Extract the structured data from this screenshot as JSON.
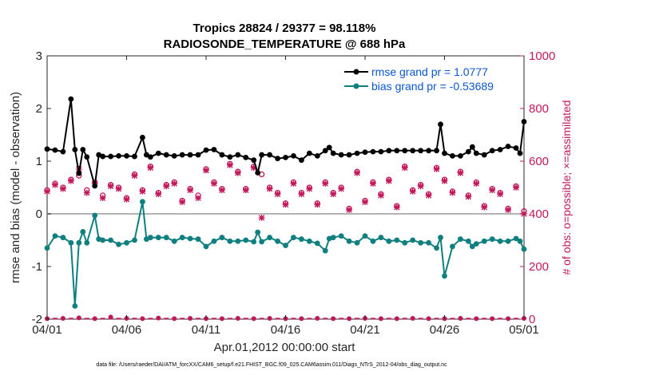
{
  "chart_data": {
    "type": "line",
    "title": "Tropics 28824 / 29377 = 98.118%",
    "subtitle": "RADIOSONDE_TEMPERATURE @ 688 hPa",
    "xlabel": "Apr.01,2012 00:00:00 start",
    "ylabel": "rmse and bias (model - observation)",
    "ylabel_right": "# of obs: o=possible; ×=assimilated",
    "footer": "data file: /Users/raeder/DAI/ATM_forcXX/CAM6_setup/f.e21.FHIST_BGC.f09_025.CAM6assim.011/Diags_NTrS_2012-04/obs_diag_output.nc",
    "xlim": [
      0,
      30
    ],
    "ylim": [
      -2,
      3
    ],
    "ylim_right": [
      0,
      1000
    ],
    "x_ticks": [
      0,
      5,
      10,
      15,
      20,
      25,
      30
    ],
    "x_tick_labels": [
      "04/01",
      "04/06",
      "04/11",
      "04/16",
      "04/21",
      "04/26",
      "05/01"
    ],
    "y_ticks": [
      -2,
      -1,
      0,
      1,
      2,
      3
    ],
    "y_tick_labels": [
      "-2",
      "-1",
      "0",
      "1",
      "2",
      "3"
    ],
    "y_right_ticks": [
      0,
      200,
      400,
      600,
      800,
      1000
    ],
    "y_right_tick_labels": [
      "0",
      "200",
      "400",
      "600",
      "800",
      "1000"
    ],
    "legend": [
      "rmse grand pr = 1.0777",
      "bias grand pr = -0.53689"
    ],
    "legend_position": "top-right",
    "reference_line": 0,
    "colors": {
      "rmse": "#000000",
      "bias": "#0f7f7f",
      "obs": "#c2185b",
      "zero_line": "#b3b3b3"
    },
    "series": [
      {
        "name": "rmse",
        "x": [
          0,
          0.5,
          1,
          1.5,
          1.75,
          2,
          2.25,
          2.5,
          3,
          3.25,
          3.5,
          4,
          4.5,
          5,
          5.5,
          6,
          6.25,
          6.5,
          7,
          7.5,
          8,
          8.5,
          9,
          9.5,
          10,
          10.5,
          11,
          11.5,
          12,
          12.5,
          13,
          13.25,
          13.5,
          14,
          14.5,
          15,
          15.5,
          16,
          16.5,
          17,
          17.5,
          17.75,
          18,
          18.5,
          19,
          19.5,
          20,
          20.5,
          21,
          21.5,
          22,
          22.5,
          23,
          23.5,
          24,
          24.5,
          24.75,
          25,
          25.5,
          26,
          26.5,
          26.75,
          27,
          27.5,
          28,
          28.5,
          29,
          29.5,
          29.75,
          30
        ],
        "values": [
          1.23,
          1.21,
          1.18,
          2.18,
          1.22,
          0.77,
          1.22,
          1.08,
          0.53,
          1.12,
          1.09,
          1.09,
          1.1,
          1.1,
          1.09,
          1.45,
          1.12,
          1.08,
          1.15,
          1.12,
          1.1,
          1.12,
          1.12,
          1.12,
          1.21,
          1.22,
          1.12,
          1.08,
          1.12,
          1.07,
          1.02,
          0.78,
          1.12,
          1.12,
          1.05,
          1.07,
          1.1,
          1.02,
          1.15,
          1.1,
          1.2,
          1.26,
          1.15,
          1.12,
          1.12,
          1.15,
          1.17,
          1.18,
          1.18,
          1.2,
          1.2,
          1.2,
          1.2,
          1.2,
          1.2,
          1.2,
          1.7,
          1.15,
          1.1,
          1.1,
          1.18,
          1.27,
          1.15,
          1.12,
          1.2,
          1.22,
          1.28,
          1.25,
          1.15,
          1.75
        ]
      },
      {
        "name": "bias",
        "x": [
          0,
          0.5,
          1,
          1.5,
          1.75,
          2,
          2.25,
          2.5,
          3,
          3.25,
          3.5,
          4,
          4.5,
          5,
          5.5,
          6,
          6.25,
          6.5,
          7,
          7.5,
          8,
          8.5,
          9,
          9.5,
          10,
          10.5,
          11,
          11.5,
          12,
          12.5,
          13,
          13.25,
          13.5,
          14,
          14.5,
          15,
          15.5,
          16,
          16.5,
          17,
          17.5,
          17.75,
          18,
          18.5,
          19,
          19.5,
          20,
          20.5,
          21,
          21.5,
          22,
          22.5,
          23,
          23.5,
          24,
          24.5,
          24.75,
          25,
          25.5,
          26,
          26.5,
          26.75,
          27,
          27.5,
          28,
          28.5,
          29,
          29.5,
          29.75,
          30
        ],
        "values": [
          -0.65,
          -0.42,
          -0.45,
          -0.55,
          -1.75,
          -0.55,
          -0.34,
          -0.55,
          -0.03,
          -0.48,
          -0.5,
          -0.5,
          -0.58,
          -0.55,
          -0.5,
          0.23,
          -0.48,
          -0.45,
          -0.45,
          -0.45,
          -0.52,
          -0.45,
          -0.47,
          -0.48,
          -0.62,
          -0.52,
          -0.45,
          -0.52,
          -0.52,
          -0.5,
          -0.53,
          -0.35,
          -0.53,
          -0.45,
          -0.52,
          -0.6,
          -0.45,
          -0.48,
          -0.52,
          -0.56,
          -0.7,
          -0.47,
          -0.45,
          -0.42,
          -0.52,
          -0.55,
          -0.42,
          -0.52,
          -0.45,
          -0.52,
          -0.5,
          -0.55,
          -0.5,
          -0.55,
          -0.55,
          -0.65,
          -0.45,
          -1.18,
          -0.62,
          -0.48,
          -0.52,
          -0.62,
          -0.57,
          -0.52,
          -0.48,
          -0.52,
          -0.52,
          -0.47,
          -0.52,
          -0.67
        ]
      },
      {
        "name": "obs_possible",
        "x": [
          0,
          0.5,
          1,
          1.5,
          2,
          2.5,
          3,
          3.5,
          4,
          4.5,
          5,
          5.5,
          6,
          6.5,
          7,
          7.5,
          8,
          8.5,
          9,
          9.5,
          10,
          10.5,
          11,
          11.5,
          12,
          12.5,
          13,
          13.5,
          14,
          14.5,
          15,
          15.5,
          16,
          16.5,
          17,
          17.5,
          18,
          18.5,
          19,
          19.5,
          20,
          20.5,
          21,
          21.5,
          22,
          22.5,
          23,
          23.5,
          24,
          24.5,
          25,
          25.5,
          26,
          26.5,
          27,
          27.5,
          28,
          28.5,
          29,
          29.5,
          30
        ],
        "values": [
          490,
          515,
          500,
          530,
          545,
          490,
          520,
          470,
          510,
          500,
          460,
          550,
          490,
          580,
          480,
          510,
          520,
          450,
          495,
          470,
          570,
          520,
          495,
          590,
          560,
          495,
          580,
          550,
          500,
          480,
          440,
          520,
          480,
          500,
          440,
          520,
          480,
          500,
          420,
          560,
          450,
          520,
          475,
          530,
          430,
          580,
          490,
          510,
          475,
          575,
          530,
          485,
          560,
          470,
          520,
          430,
          495,
          480,
          420,
          505,
          410
        ]
      },
      {
        "name": "obs_assimilated",
        "x": [
          0,
          0.5,
          1,
          1.5,
          2,
          2.5,
          3,
          3.5,
          4,
          4.5,
          5,
          5.5,
          6,
          6.5,
          7,
          7.5,
          8,
          8.5,
          9,
          9.5,
          10,
          10.5,
          11,
          11.5,
          12,
          12.5,
          13,
          13.5,
          14,
          14.5,
          15,
          15.5,
          16,
          16.5,
          17,
          17.5,
          18,
          18.5,
          19,
          19.5,
          20,
          20.5,
          21,
          21.5,
          22,
          22.5,
          23,
          23.5,
          24,
          24.5,
          25,
          25.5,
          26,
          26.5,
          27,
          27.5,
          28,
          28.5,
          29,
          29.5,
          30
        ],
        "values": [
          485,
          510,
          495,
          525,
          570,
          480,
          515,
          460,
          505,
          495,
          455,
          545,
          485,
          575,
          475,
          505,
          515,
          445,
          490,
          460,
          565,
          515,
          490,
          585,
          555,
          490,
          575,
          385,
          495,
          475,
          435,
          515,
          475,
          495,
          435,
          515,
          475,
          495,
          415,
          555,
          445,
          515,
          470,
          525,
          425,
          575,
          485,
          505,
          470,
          570,
          525,
          480,
          555,
          465,
          515,
          425,
          490,
          475,
          415,
          500,
          400
        ]
      },
      {
        "name": "obs_rejected",
        "x": [
          0,
          1,
          2,
          3,
          4,
          5,
          6,
          7,
          8,
          9,
          10,
          11,
          12,
          13,
          14,
          15,
          16,
          17,
          18,
          19,
          20,
          21,
          22,
          23,
          24,
          25,
          26,
          27,
          28,
          29,
          30
        ],
        "values": [
          2,
          3,
          5,
          2,
          8,
          3,
          2,
          4,
          2,
          3,
          2,
          2,
          3,
          2,
          3,
          2,
          2,
          3,
          2,
          2,
          3,
          2,
          2,
          3,
          2,
          2,
          3,
          2,
          2,
          2,
          3
        ]
      }
    ]
  }
}
